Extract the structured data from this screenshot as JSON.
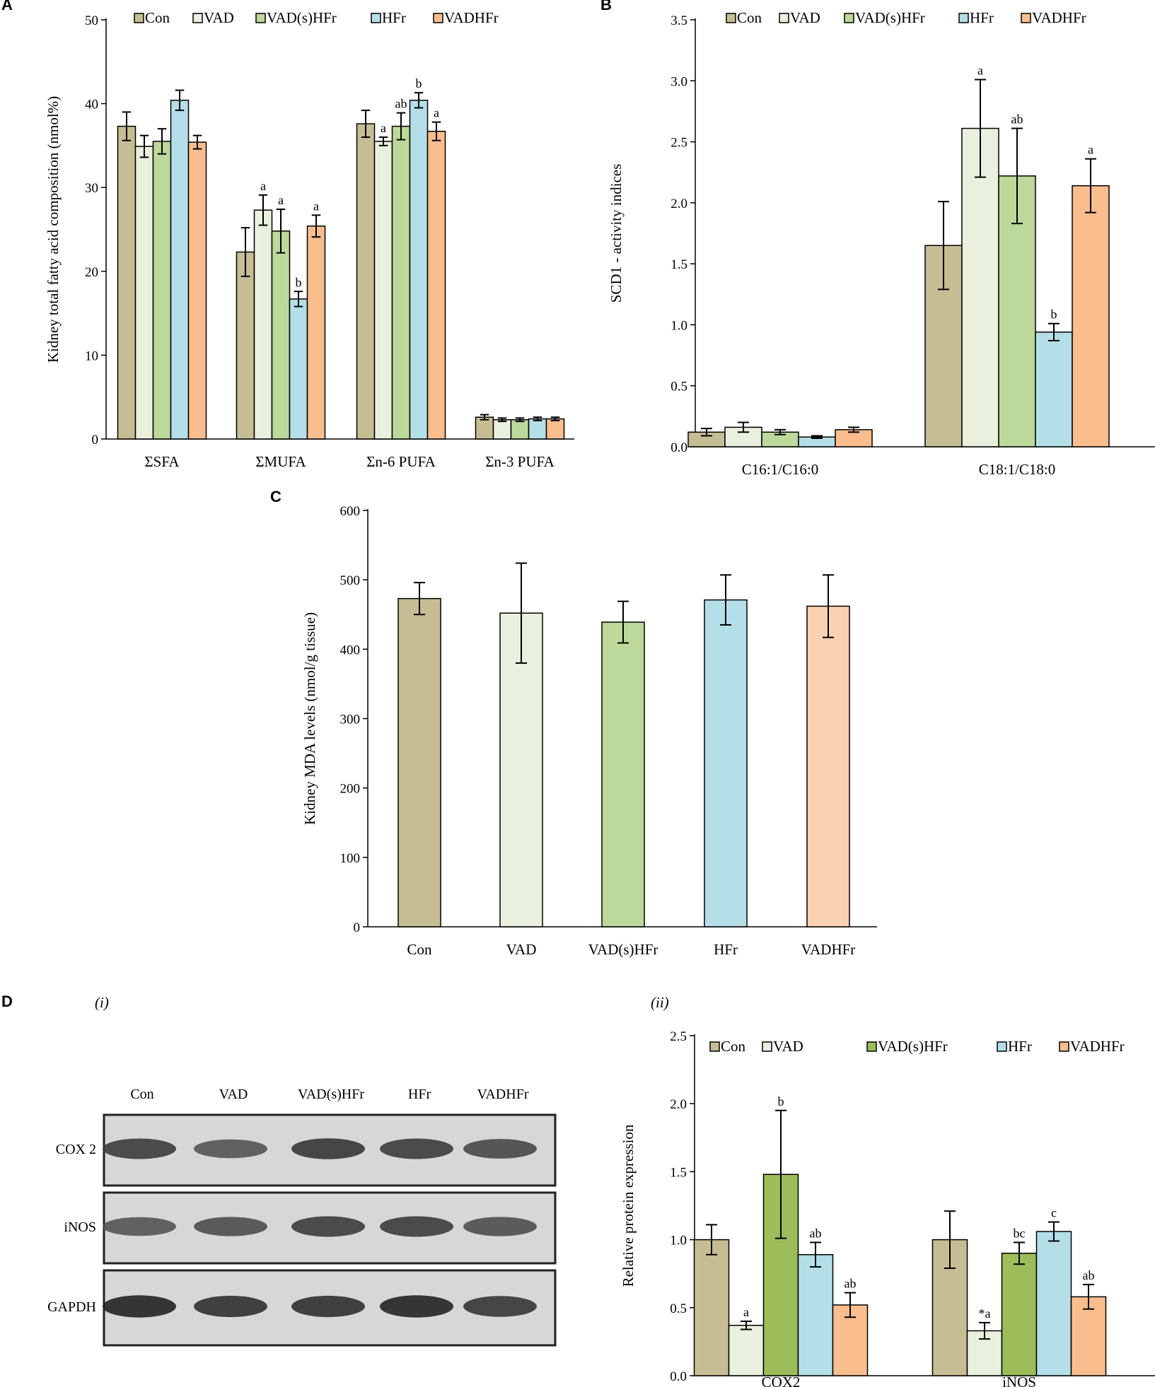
{
  "colors": {
    "Con": "#c6bd94",
    "VAD": "#e9f0de",
    "VAD(s)HFr": "#bcd89a",
    "VAD(s)HFr_D": "#9cbd5a",
    "HFr": "#b5dfe8",
    "VADHFr": "#f9bd8e",
    "VADHFr_C": "#fbd1b3"
  },
  "chart_data": [
    {
      "id": "A",
      "panel_label": "A",
      "type": "bar",
      "title": "",
      "ylabel": "Kidney total fatty acid composition (nmol%)",
      "ylim": [
        0,
        50
      ],
      "yticks": [
        0,
        10,
        20,
        30,
        40,
        50
      ],
      "tick_labels": [
        "0",
        "10",
        "20",
        "30",
        "40",
        "50"
      ],
      "categories": [
        "ΣSFA",
        "ΣMUFA",
        "Σn-6 PUFA",
        "Σn-3 PUFA"
      ],
      "legend": [
        "Con",
        "VAD",
        "VAD(s)HFr",
        "HFr",
        "VADHFr"
      ],
      "series": [
        {
          "name": "Con",
          "values": [
            37.3,
            22.3,
            37.6,
            2.6
          ],
          "errors": [
            1.7,
            2.9,
            1.6,
            0.3
          ],
          "labels": [
            "",
            "",
            "",
            ""
          ]
        },
        {
          "name": "VAD",
          "values": [
            34.9,
            27.3,
            35.5,
            2.3
          ],
          "errors": [
            1.3,
            1.8,
            0.5,
            0.2
          ],
          "labels": [
            "",
            "a",
            "a",
            ""
          ]
        },
        {
          "name": "VAD(s)HFr",
          "values": [
            35.5,
            24.8,
            37.3,
            2.3
          ],
          "errors": [
            1.5,
            2.6,
            1.6,
            0.2
          ],
          "labels": [
            "",
            "a",
            "ab",
            ""
          ]
        },
        {
          "name": "HFr",
          "values": [
            40.4,
            16.7,
            40.4,
            2.4
          ],
          "errors": [
            1.2,
            0.9,
            0.9,
            0.2
          ],
          "labels": [
            "",
            "b",
            "b",
            ""
          ]
        },
        {
          "name": "VADHFr",
          "values": [
            35.4,
            25.4,
            36.7,
            2.4
          ],
          "errors": [
            0.8,
            1.3,
            1.1,
            0.2
          ],
          "labels": [
            "",
            "a",
            "a",
            ""
          ]
        }
      ]
    },
    {
      "id": "B",
      "panel_label": "B",
      "type": "bar",
      "title": "",
      "ylabel": "SCD1 - activity indices",
      "ylim": [
        0,
        3.5
      ],
      "yticks": [
        0,
        0.5,
        1,
        1.5,
        2,
        2.5,
        3,
        3.5
      ],
      "tick_labels": [
        "0.0",
        "0.5",
        "1.0",
        "1.5",
        "2.0",
        "2.5",
        "3.0",
        "3.5"
      ],
      "categories": [
        "C16:1/C16:0",
        "C18:1/C18:0"
      ],
      "legend": [
        "Con",
        "VAD",
        "VAD(s)HFr",
        "HFr",
        "VADHFr"
      ],
      "series": [
        {
          "name": "Con",
          "values": [
            0.12,
            1.65
          ],
          "errors": [
            0.03,
            0.36
          ],
          "labels": [
            "",
            ""
          ]
        },
        {
          "name": "VAD",
          "values": [
            0.16,
            2.61
          ],
          "errors": [
            0.04,
            0.4
          ],
          "labels": [
            "",
            "a"
          ]
        },
        {
          "name": "VAD(s)HFr",
          "values": [
            0.12,
            2.22
          ],
          "errors": [
            0.02,
            0.39
          ],
          "labels": [
            "",
            "ab"
          ]
        },
        {
          "name": "HFr",
          "values": [
            0.08,
            0.94
          ],
          "errors": [
            0.01,
            0.07
          ],
          "labels": [
            "",
            "b"
          ]
        },
        {
          "name": "VADHFr",
          "values": [
            0.14,
            2.14
          ],
          "errors": [
            0.02,
            0.22
          ],
          "labels": [
            "",
            "a"
          ]
        }
      ]
    },
    {
      "id": "C",
      "panel_label": "C",
      "type": "bar",
      "title": "",
      "ylabel": "Kidney MDA levels (nmol/g tissue)",
      "ylim": [
        0,
        600
      ],
      "yticks": [
        0,
        100,
        200,
        300,
        400,
        500,
        600
      ],
      "tick_labels": [
        "0",
        "100",
        "200",
        "300",
        "400",
        "500",
        "600"
      ],
      "categories": [
        "Con",
        "VAD",
        "VAD(s)HFr",
        "HFr",
        "VADHFr"
      ],
      "values": [
        473,
        452,
        439,
        471,
        462
      ],
      "errors": [
        23,
        72,
        30,
        36,
        45
      ]
    },
    {
      "id": "D",
      "panel_label": "(ii)",
      "type": "bar",
      "title": "",
      "ylabel": "Relative protein expression",
      "ylim": [
        0,
        2.5
      ],
      "yticks": [
        0,
        0.5,
        1,
        1.5,
        2,
        2.5
      ],
      "tick_labels": [
        "0.0",
        "0.5",
        "1.0",
        "1.5",
        "2.0",
        "2.5"
      ],
      "categories": [
        "COX2",
        "iNOS"
      ],
      "legend": [
        "Con",
        "VAD",
        "VAD(s)HFr",
        "HFr",
        "VADHFr"
      ],
      "series": [
        {
          "name": "Con",
          "values": [
            1.0,
            1.0
          ],
          "errors": [
            0.11,
            0.21
          ],
          "labels": [
            "",
            ""
          ]
        },
        {
          "name": "VAD",
          "values": [
            0.37,
            0.33
          ],
          "errors": [
            0.03,
            0.06
          ],
          "labels": [
            "a",
            "*a"
          ]
        },
        {
          "name": "VAD(s)HFr",
          "values": [
            1.48,
            0.9
          ],
          "errors": [
            0.47,
            0.08
          ],
          "labels": [
            "b",
            "bc"
          ]
        },
        {
          "name": "HFr",
          "values": [
            0.89,
            1.06
          ],
          "errors": [
            0.09,
            0.07
          ],
          "labels": [
            "ab",
            "c"
          ]
        },
        {
          "name": "VADHFr",
          "values": [
            0.52,
            0.58
          ],
          "errors": [
            0.09,
            0.09
          ],
          "labels": [
            "ab",
            "ab"
          ]
        }
      ]
    }
  ],
  "blot": {
    "panel_label": "D",
    "sub_label": "(i)",
    "lanes": [
      "Con",
      "VAD",
      "VAD(s)HFr",
      "HFr",
      "VADHFr"
    ],
    "rows": [
      {
        "label": "COX 2",
        "intensity": [
          0.75,
          0.55,
          0.8,
          0.75,
          0.65
        ]
      },
      {
        "label": "iNOS",
        "intensity": [
          0.55,
          0.6,
          0.75,
          0.75,
          0.6
        ]
      },
      {
        "label": "GAPDH",
        "intensity": [
          0.95,
          0.85,
          0.85,
          0.95,
          0.8
        ]
      }
    ]
  }
}
